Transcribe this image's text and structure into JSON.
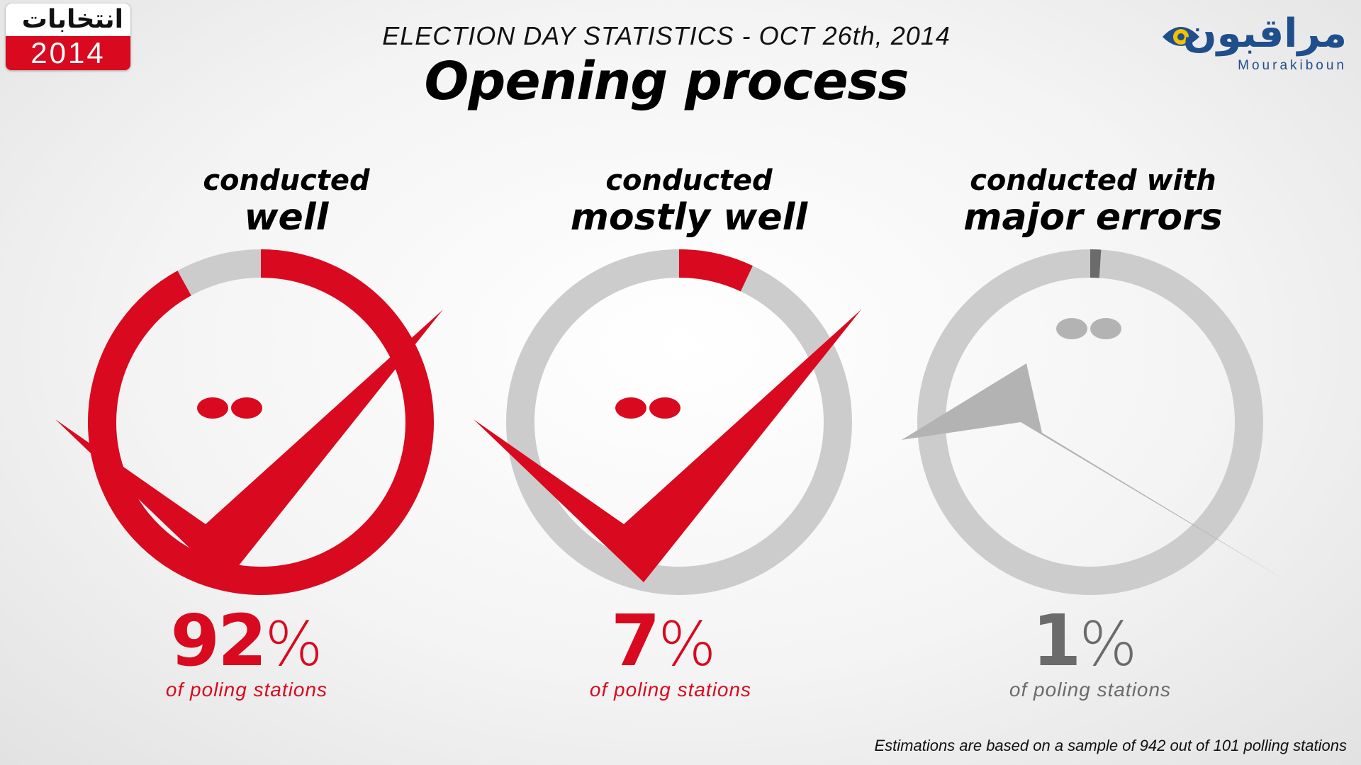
{
  "header": {
    "subtitle": "ELECTION DAY STATISTICS - OCT 26th, 2014",
    "title": "Opening process"
  },
  "logos": {
    "left": {
      "arabic": "انتخابات",
      "year": "2014"
    },
    "right": {
      "arabic": "مراقبون",
      "latin": "Mourakiboun"
    }
  },
  "colors": {
    "accent": "#d9091f",
    "track": "#cccccc",
    "muted": "#6b6b6b",
    "brand_blue": "#1f4e8c",
    "eye_yellow": "#f2c200"
  },
  "chart_data": {
    "type": "pie",
    "categories": [
      "conducted well",
      "conducted mostly well",
      "conducted with major errors"
    ],
    "values": [
      92,
      7,
      1
    ],
    "unit": "%",
    "panels": [
      {
        "label_line1": "conducted",
        "label_line2": "well",
        "value": 92,
        "number": "92",
        "symbol": "%",
        "caption": "of poling stations",
        "color": "#d9091f",
        "icon": "check-icon"
      },
      {
        "label_line1": "conducted",
        "label_line2": "mostly well",
        "value": 7,
        "number": "7",
        "symbol": "%",
        "caption": "of poling stations",
        "color": "#d9091f",
        "icon": "check-icon"
      },
      {
        "label_line1": "conducted with",
        "label_line2": "major errors",
        "value": 1,
        "number": "1",
        "symbol": "%",
        "caption": "of poling stations",
        "color": "#6b6b6b",
        "icon": "check-icon"
      }
    ]
  },
  "footnote": "Estimations are based on a sample of 942 out of 101 polling stations"
}
